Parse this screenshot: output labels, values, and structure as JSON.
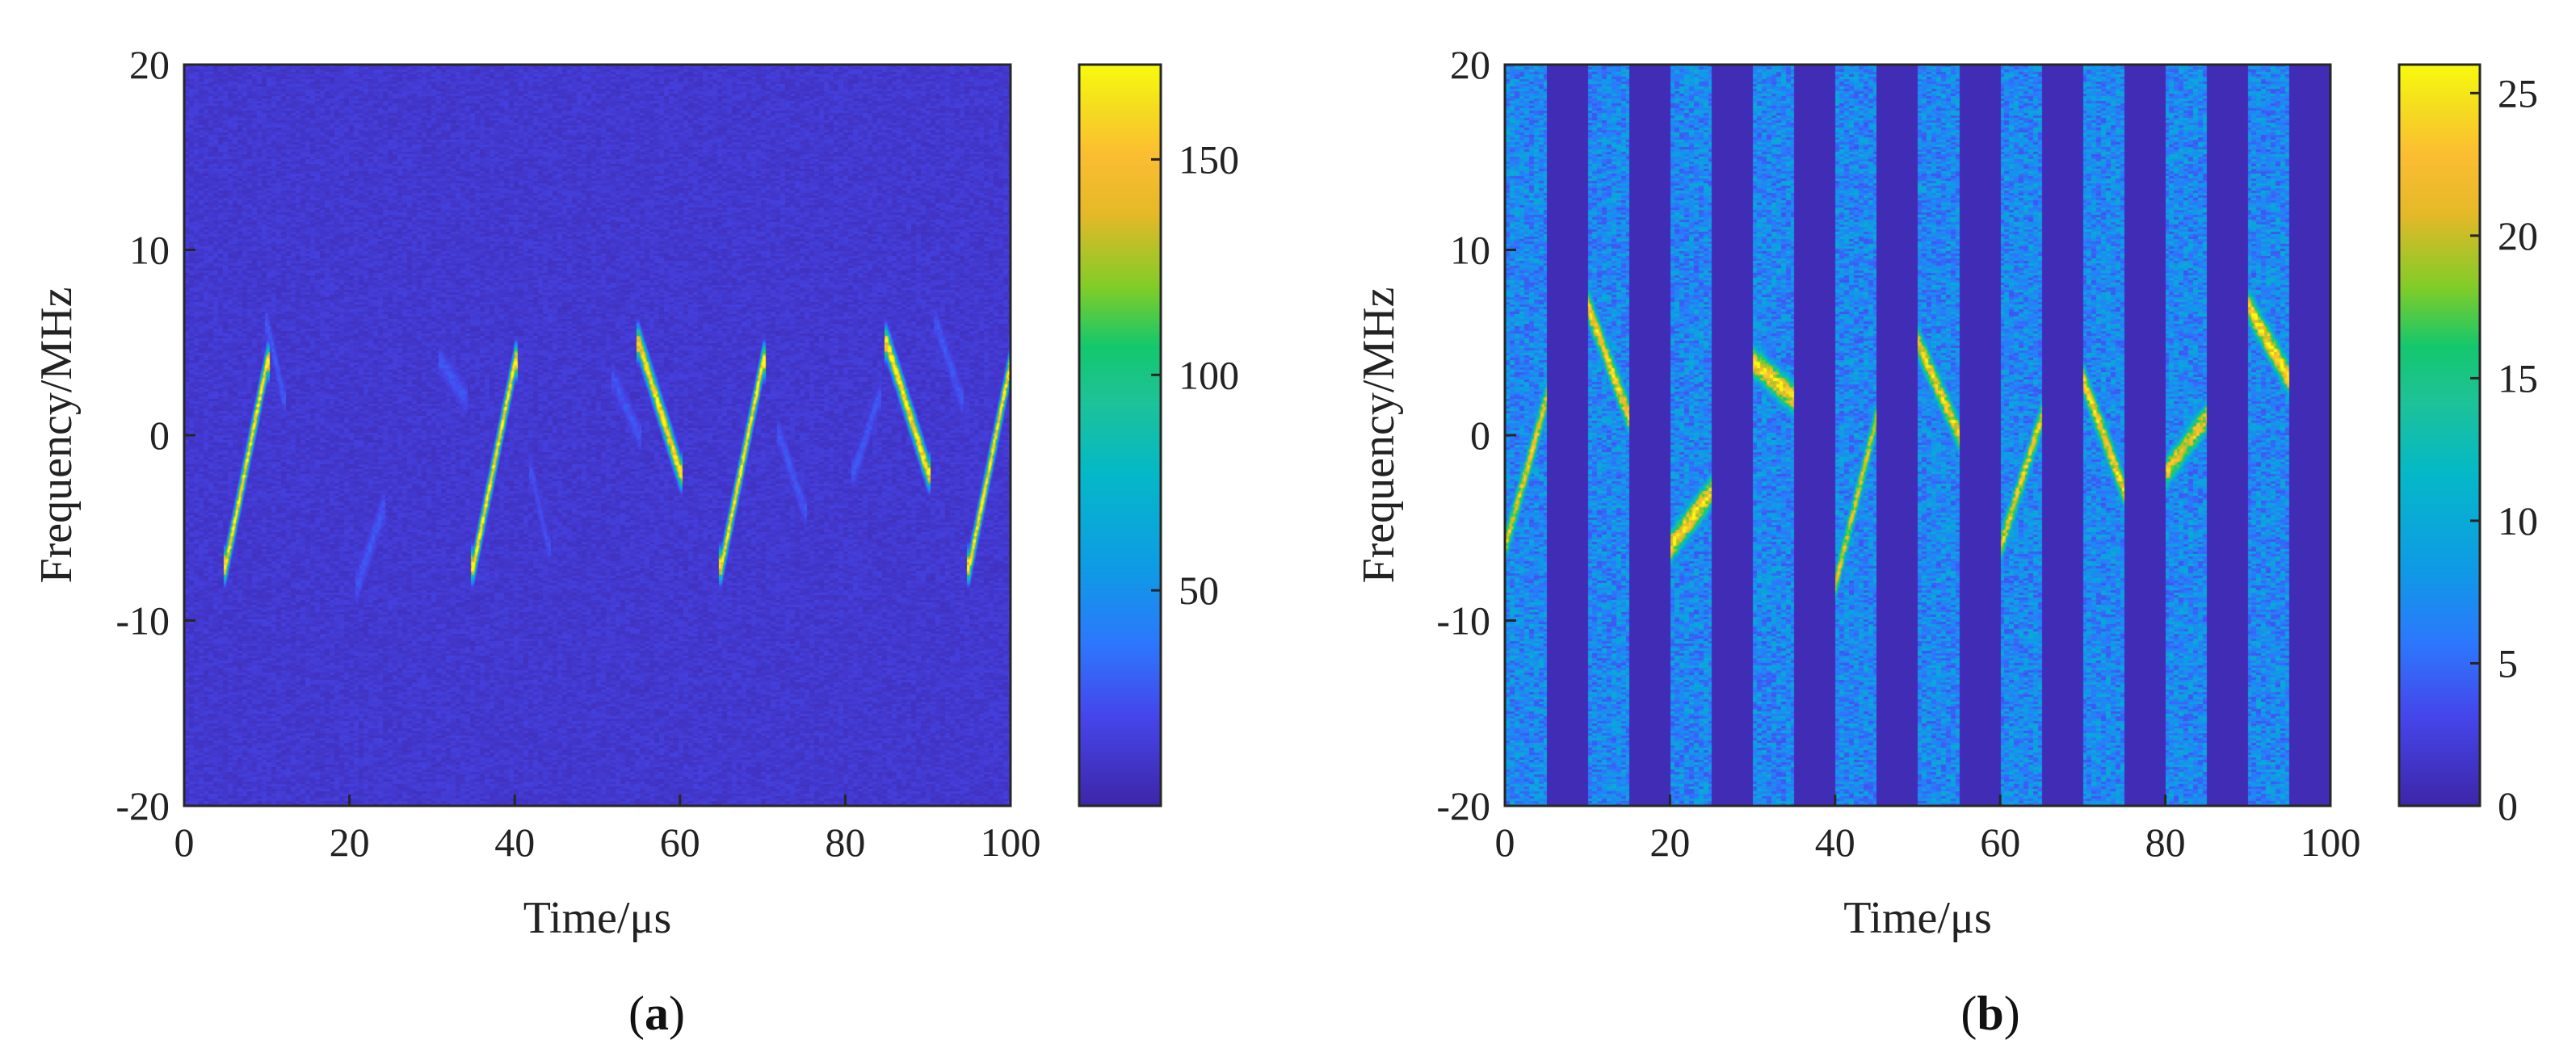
{
  "figure": {
    "panels": [
      "a",
      "b"
    ]
  },
  "chart_data": [
    {
      "id": "a",
      "type": "heatmap",
      "caption": "(a)",
      "caption_letter": "a",
      "xlabel": "Time/μs",
      "ylabel": "Frequency/MHz",
      "xlim": [
        0,
        100
      ],
      "ylim": [
        -20,
        20
      ],
      "xticks": [
        0,
        20,
        40,
        60,
        80,
        100
      ],
      "yticks": [
        -20,
        -10,
        0,
        10,
        20
      ],
      "colorbar": {
        "min": 0,
        "max": 172,
        "ticks": [
          50,
          100,
          150
        ]
      },
      "background_level": 12,
      "gates": [],
      "chirps": [
        {
          "t0": 5,
          "t1": 10,
          "f0": -7,
          "f1": 4,
          "peak": 170,
          "width": 0.8
        },
        {
          "t0": 35,
          "t1": 40,
          "f0": -7,
          "f1": 4,
          "peak": 170,
          "width": 0.8
        },
        {
          "t0": 55,
          "t1": 60,
          "f0": 5,
          "f1": -2,
          "peak": 170,
          "width": 0.8
        },
        {
          "t0": 65,
          "t1": 70,
          "f0": -7,
          "f1": 4,
          "peak": 170,
          "width": 0.8
        },
        {
          "t0": 85,
          "t1": 90,
          "f0": 5,
          "f1": -2,
          "peak": 170,
          "width": 0.8
        },
        {
          "t0": 95,
          "t1": 100,
          "f0": -7,
          "f1": 4,
          "peak": 170,
          "width": 0.8
        },
        {
          "t0": 10,
          "t1": 12,
          "f0": 6,
          "f1": 2,
          "peak": 28,
          "width": 1.0
        },
        {
          "t0": 31,
          "t1": 34,
          "f0": 4,
          "f1": 2,
          "peak": 26,
          "width": 1.0
        },
        {
          "t0": 21,
          "t1": 24,
          "f0": -8,
          "f1": -4,
          "peak": 26,
          "width": 1.2
        },
        {
          "t0": 42,
          "t1": 44,
          "f0": -2,
          "f1": -6,
          "peak": 24,
          "width": 1.0
        },
        {
          "t0": 52,
          "t1": 55,
          "f0": 3,
          "f1": 0,
          "peak": 26,
          "width": 1.0
        },
        {
          "t0": 72,
          "t1": 75,
          "f0": 0,
          "f1": -4,
          "peak": 26,
          "width": 1.0
        },
        {
          "t0": 81,
          "t1": 84,
          "f0": -2,
          "f1": 2,
          "peak": 26,
          "width": 1.0
        },
        {
          "t0": 91,
          "t1": 94,
          "f0": 6,
          "f1": 2,
          "peak": 26,
          "width": 1.0
        }
      ]
    },
    {
      "id": "b",
      "type": "heatmap",
      "caption": "(b)",
      "caption_letter": "b",
      "xlabel": "Time/μs",
      "ylabel": "Frequency/MHz",
      "xlim": [
        0,
        100
      ],
      "ylim": [
        -20,
        20
      ],
      "xticks": [
        0,
        20,
        40,
        60,
        80,
        100
      ],
      "yticks": [
        -20,
        -10,
        0,
        10,
        20
      ],
      "colorbar": {
        "min": 0,
        "max": 26,
        "ticks": [
          0,
          5,
          10,
          15,
          20,
          25
        ]
      },
      "background_level": 0.6,
      "gates": [
        [
          0,
          5
        ],
        [
          10,
          15
        ],
        [
          20,
          25
        ],
        [
          30,
          35
        ],
        [
          40,
          45
        ],
        [
          50,
          55
        ],
        [
          60,
          65
        ],
        [
          70,
          75
        ],
        [
          80,
          85
        ],
        [
          90,
          95
        ]
      ],
      "gate_level": 7,
      "chirps": [
        {
          "t0": 0,
          "t1": 5,
          "f0": -6,
          "f1": 2,
          "peak": 22,
          "width": 1.0
        },
        {
          "t0": 10,
          "t1": 15,
          "f0": 7,
          "f1": 1,
          "peak": 24,
          "width": 1.0
        },
        {
          "t0": 20,
          "t1": 25,
          "f0": -6,
          "f1": -3,
          "peak": 24,
          "width": 1.0
        },
        {
          "t0": 30,
          "t1": 35,
          "f0": 4,
          "f1": 2,
          "peak": 24,
          "width": 1.0
        },
        {
          "t0": 40,
          "t1": 45,
          "f0": -8,
          "f1": 1,
          "peak": 21,
          "width": 1.0
        },
        {
          "t0": 50,
          "t1": 55,
          "f0": 5,
          "f1": 0,
          "peak": 23,
          "width": 1.0
        },
        {
          "t0": 60,
          "t1": 65,
          "f0": -6,
          "f1": 1,
          "peak": 22,
          "width": 1.0
        },
        {
          "t0": 70,
          "t1": 75,
          "f0": 3,
          "f1": -3,
          "peak": 24,
          "width": 1.0
        },
        {
          "t0": 80,
          "t1": 85,
          "f0": -2,
          "f1": 1,
          "peak": 22,
          "width": 1.0
        },
        {
          "t0": 90,
          "t1": 95,
          "f0": 7,
          "f1": 3,
          "peak": 25,
          "width": 1.0
        }
      ]
    }
  ]
}
